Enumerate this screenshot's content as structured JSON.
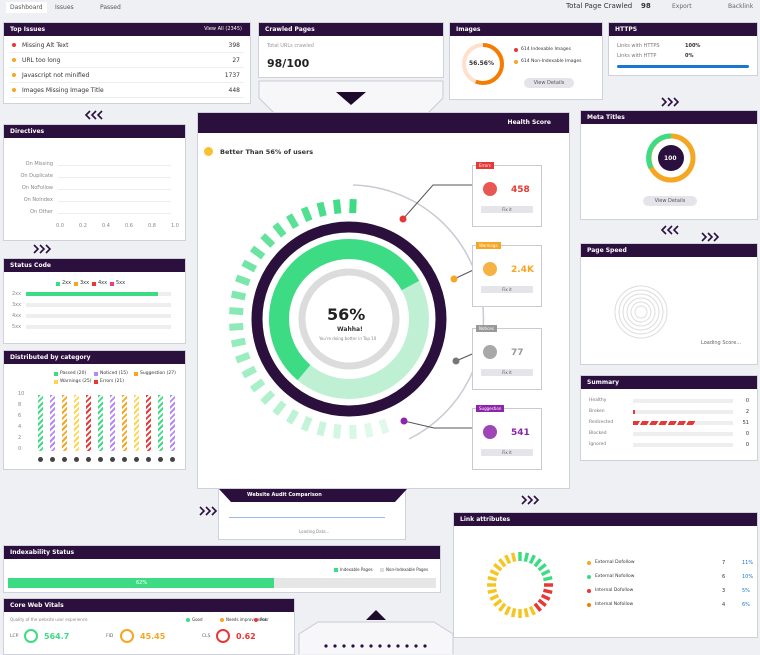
{
  "tabs": [
    "Dashboard",
    "Issues",
    "Passed"
  ],
  "header": {
    "crawled_label": "Total Page Crawled",
    "crawled_value": "98",
    "export": "Export",
    "backlink": "Backlink"
  },
  "top_issues": {
    "title": "Top Issues",
    "view_all": "View All (2345)",
    "rows": [
      [
        "Missing Alt Text",
        "398"
      ],
      [
        "URL too long",
        "27"
      ],
      [
        "Javascript not minified",
        "1737"
      ],
      [
        "Images Missing Image Title",
        "448"
      ]
    ]
  },
  "crawled_pages": {
    "title": "Crawled Pages",
    "label": "Total URLs crawled",
    "value": "98/100"
  },
  "images": {
    "title": "Images",
    "percent": "56.56%",
    "items": [
      "614 Indexable Images",
      "614 Non-Indexable Images"
    ],
    "button": "View Details"
  },
  "https": {
    "title": "HTTPS",
    "rows": [
      [
        "Links with HTTPS",
        "100%"
      ],
      [
        "Links with HTTP",
        "0%"
      ]
    ]
  },
  "directives": {
    "title": "Directives",
    "rows": [
      "On Missing",
      "On Duplicate",
      "On NoFollow",
      "On NoIndex",
      "On Other"
    ],
    "x_ticks": [
      "0.0",
      "0.2",
      "0.4",
      "0.6",
      "0.8",
      "1.0"
    ]
  },
  "health": {
    "title": "Health Score",
    "better": "Better Than 56% of users",
    "score": "56%",
    "headline": "Wahha!",
    "sub": "You're doing better in Top 10",
    "cards": [
      {
        "tag": "Errors",
        "value": "458",
        "button": "Fix it"
      },
      {
        "tag": "Warnings",
        "value": "2.4K",
        "button": "Fix it"
      },
      {
        "tag": "Notices",
        "value": "77",
        "button": "Fix it"
      },
      {
        "tag": "Suggestion",
        "value": "541",
        "button": "Fix it"
      }
    ]
  },
  "meta_titles": {
    "title": "Meta Titles",
    "value": "100",
    "button": "View Details"
  },
  "page_speed": {
    "title": "Page Speed",
    "loading": "Loading Score..."
  },
  "summary": {
    "title": "Summary",
    "rows": [
      [
        "Healthy",
        "0"
      ],
      [
        "Broken",
        "2"
      ],
      [
        "Redirected",
        "51"
      ],
      [
        "Blocked",
        "0"
      ],
      [
        "Ignored",
        "0"
      ]
    ]
  },
  "status_code": {
    "title": "Status Code",
    "legend": [
      "2xx",
      "3xx",
      "4xx",
      "5xx"
    ],
    "rows": [
      "2xx",
      "3xx",
      "4xx",
      "5xx"
    ]
  },
  "distribution": {
    "title": "Distributed by category",
    "legend": [
      "Passed (20)",
      "Noticed (15)",
      "Suggestion (27)",
      "Warnings (25)",
      "Errors (21)"
    ],
    "y_ticks": [
      "10",
      "8",
      "6",
      "4",
      "2",
      "0"
    ]
  },
  "audit": {
    "title": "Website Audit Comparison",
    "loading": "Loading Data..."
  },
  "indexability": {
    "title": "Indexability Status",
    "legend": [
      "Indexable Pages",
      "Non-Indexable Pages"
    ],
    "bar_label": "62%"
  },
  "links": {
    "title": "Link attributes",
    "rows": [
      [
        "External Dofollow",
        "7",
        "11%"
      ],
      [
        "External Nofollow",
        "6",
        "10%"
      ],
      [
        "Internal Dofollow",
        "3",
        "5%"
      ],
      [
        "Internal Nofollow",
        "4",
        "6%"
      ]
    ]
  },
  "cwv": {
    "title": "Core Web Vitals",
    "subtitle": "Quality of the website user experience",
    "legend": [
      "Good",
      "Needs improvement",
      "Poor"
    ],
    "metrics": [
      [
        "LCP",
        "564.7"
      ],
      [
        "FID",
        "45.45"
      ],
      [
        "CLS",
        "0.62"
      ]
    ]
  }
}
